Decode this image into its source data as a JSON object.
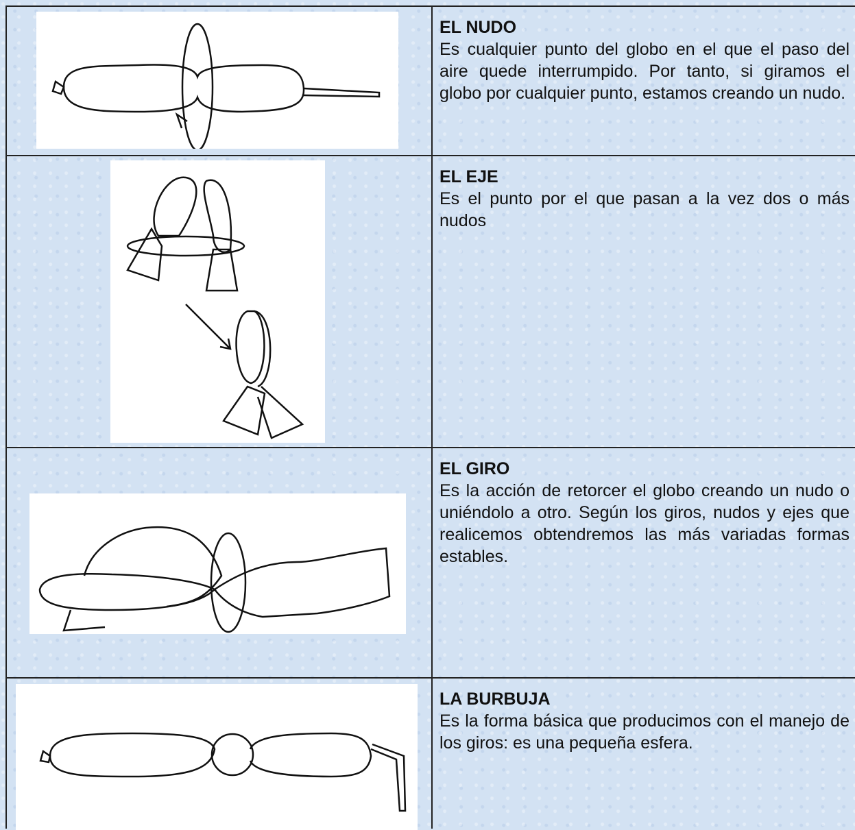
{
  "rows": [
    {
      "title": "EL NUDO",
      "text": "Es cualquier punto del globo en el que el paso del aire quede interrumpido.  Por tanto, si giramos el globo por cualquier punto, estamos creando un nudo."
    },
    {
      "title": "EL EJE",
      "text": "Es el punto por el que pasan a la vez dos o más nudos"
    },
    {
      "title": "EL GIRO",
      "text": "Es la acción de retorcer el globo creando un nudo o uniéndolo a otro.  Según los giros, nudos y ejes que realicemos obtendremos las más variadas formas estables."
    },
    {
      "title": "LA BURBUJA",
      "text": "Es la forma básica que producimos con el manejo de los giros: es una pequeña esfera."
    }
  ]
}
